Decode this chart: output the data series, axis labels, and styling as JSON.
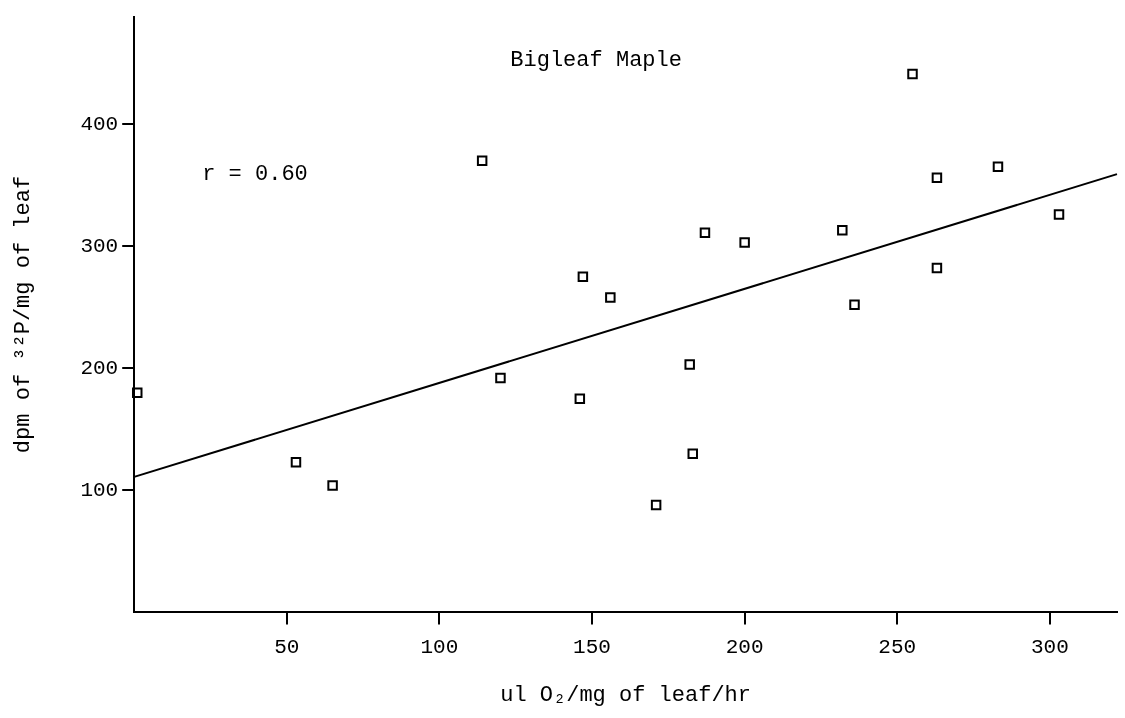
{
  "chart_data": {
    "type": "scatter",
    "title": "Bigleaf Maple",
    "xlabel": "ul O₂/mg of leaf/hr",
    "ylabel": "dpm of ³²P/mg of leaf",
    "annotations": [
      "r = 0.60"
    ],
    "xlim": [
      0,
      322
    ],
    "ylim": [
      0,
      488
    ],
    "xticks": [
      50,
      100,
      150,
      200,
      250,
      300
    ],
    "yticks": [
      100,
      200,
      300,
      400
    ],
    "grid": false,
    "legend": false,
    "marker": "square",
    "series": [
      {
        "color": "#000000",
        "x": [
          1,
          53,
          65,
          114,
          120,
          255,
          147,
          156,
          146,
          187,
          200,
          182,
          183,
          171,
          232,
          236,
          263,
          263,
          283,
          303
        ],
        "values": [
          180,
          123,
          104,
          370,
          192,
          441,
          275,
          258,
          175,
          311,
          303,
          203,
          130,
          88,
          313,
          252,
          356,
          282,
          365,
          326
        ]
      },
      {
        "type": "line",
        "color": "#000000",
        "x": [
          0,
          322
        ],
        "values": [
          111,
          359
        ],
        "marker": "none",
        "line_style": "solid"
      }
    ]
  }
}
